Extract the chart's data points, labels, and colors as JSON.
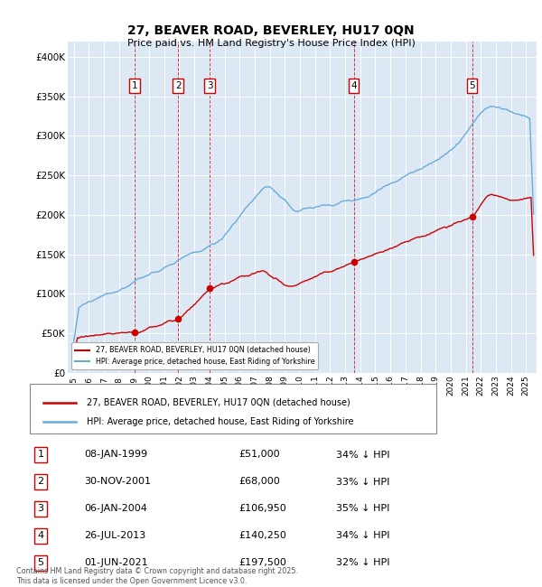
{
  "title": "27, BEAVER ROAD, BEVERLEY, HU17 0QN",
  "subtitle": "Price paid vs. HM Land Registry's House Price Index (HPI)",
  "bg_color": "#dce9f5",
  "red_color": "#cc0000",
  "blue_color": "#6aа9d4",
  "sale_dates_x": [
    1999.03,
    2001.92,
    2004.03,
    2013.57,
    2021.42
  ],
  "sale_prices_y": [
    51000,
    68000,
    106950,
    140250,
    197500
  ],
  "sale_labels": [
    "1",
    "2",
    "3",
    "4",
    "5"
  ],
  "ylim": [
    0,
    420000
  ],
  "xlim_start": 1994.6,
  "xlim_end": 2025.7,
  "yticks": [
    0,
    50000,
    100000,
    150000,
    200000,
    250000,
    300000,
    350000,
    400000
  ],
  "ytick_labels": [
    "£0",
    "£50K",
    "£100K",
    "£150K",
    "£200K",
    "£250K",
    "£300K",
    "£350K",
    "£400K"
  ],
  "legend_line1": "27, BEAVER ROAD, BEVERLEY, HU17 0QN (detached house)",
  "legend_line2": "HPI: Average price, detached house, East Riding of Yorkshire",
  "table_rows": [
    [
      "1",
      "08-JAN-1999",
      "£51,000",
      "34% ↓ HPI"
    ],
    [
      "2",
      "30-NOV-2001",
      "£68,000",
      "33% ↓ HPI"
    ],
    [
      "3",
      "06-JAN-2004",
      "£106,950",
      "35% ↓ HPI"
    ],
    [
      "4",
      "26-JUL-2013",
      "£140,250",
      "34% ↓ HPI"
    ],
    [
      "5",
      "01-JUN-2021",
      "£197,500",
      "32% ↓ HPI"
    ]
  ],
  "footnote": "Contains HM Land Registry data © Crown copyright and database right 2025.\nThis data is licensed under the Open Government Licence v3.0.",
  "xticks": [
    1995,
    1996,
    1997,
    1998,
    1999,
    2000,
    2001,
    2002,
    2003,
    2004,
    2005,
    2006,
    2007,
    2008,
    2009,
    2010,
    2011,
    2012,
    2013,
    2014,
    2015,
    2016,
    2017,
    2018,
    2019,
    2020,
    2021,
    2022,
    2023,
    2024,
    2025
  ]
}
